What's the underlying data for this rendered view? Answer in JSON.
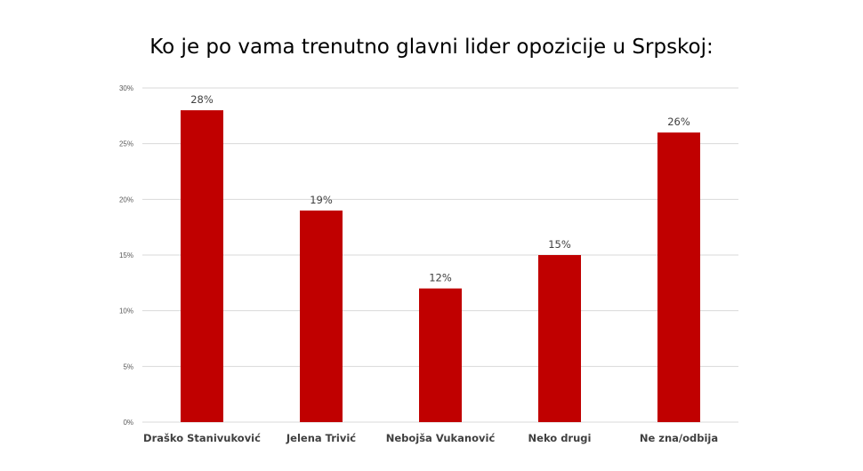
{
  "chart_data": {
    "type": "bar",
    "title": "Ko je po vama trenutno glavni lider opozicije u Srpskoj:",
    "categories": [
      "Draško Stanivuković",
      "Jelena Trivić",
      "Nebojša Vukanović",
      "Neko drugi",
      "Ne zna/odbija"
    ],
    "values": [
      28,
      19,
      12,
      15,
      26
    ],
    "data_labels": [
      "28%",
      "19%",
      "12%",
      "15%",
      "26%"
    ],
    "ylim": [
      0,
      30
    ],
    "y_ticks": [
      0,
      5,
      10,
      15,
      20,
      25,
      30
    ],
    "y_tick_labels": [
      "0%",
      "5%",
      "10%",
      "15%",
      "20%",
      "25%",
      "30%"
    ],
    "xlabel": "",
    "ylabel": "",
    "grid": true,
    "legend": "none",
    "bar_color": "#c00000",
    "grid_color": "#d9d9d9"
  }
}
